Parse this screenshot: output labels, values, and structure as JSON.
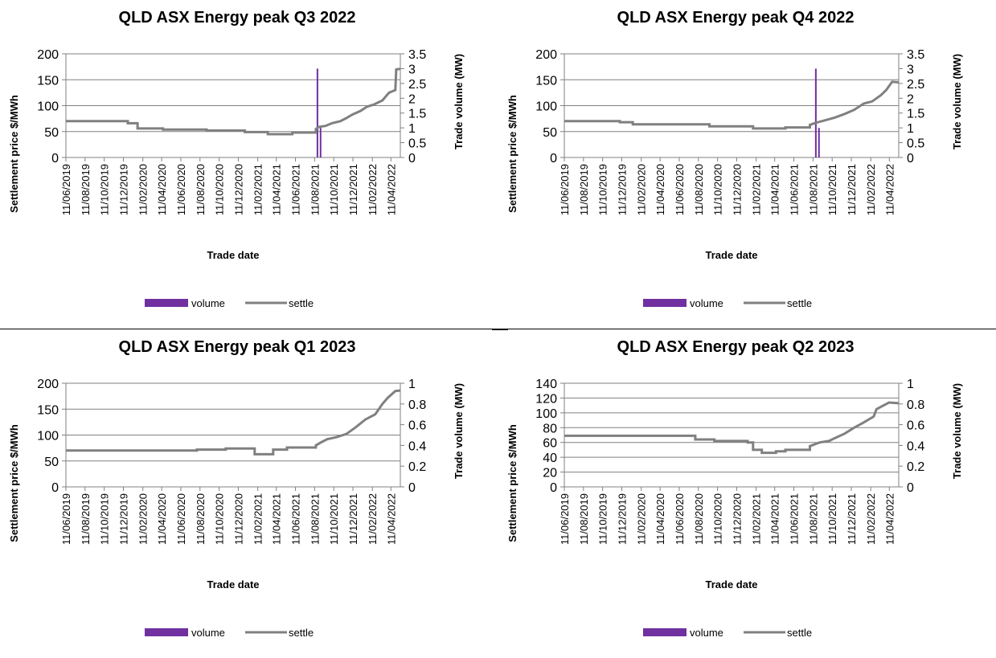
{
  "chart_data": [
    {
      "type": "line",
      "title": "QLD ASX Energy peak Q3 2022",
      "xlabel": "Trade date",
      "ylabel": "Settlement price $/MWh",
      "y2label": "Trade volume (MW)",
      "ylim": [
        0,
        200
      ],
      "y2lim": [
        0,
        3.5
      ],
      "yticks": [
        0,
        50,
        100,
        150,
        200
      ],
      "y2ticks": [
        0,
        0.5,
        1,
        1.5,
        2,
        2.5,
        3,
        3.5
      ],
      "x_range": [
        "11/06/2019",
        "11/05/2022"
      ],
      "xticks": [
        "11/06/2019",
        "11/08/2019",
        "11/10/2019",
        "11/12/2019",
        "11/02/2020",
        "11/04/2020",
        "11/06/2020",
        "11/08/2020",
        "11/10/2020",
        "11/12/2020",
        "11/02/2021",
        "11/04/2021",
        "11/06/2021",
        "11/08/2021",
        "11/10/2021",
        "11/12/2021",
        "11/02/2022",
        "11/04/2022"
      ],
      "grid": true,
      "legend": "bottom-center",
      "series": [
        {
          "name": "volume",
          "kind": "bar",
          "axis": "right",
          "color": "#7030a0",
          "points": [
            [
              "2021-08-20",
              3.0
            ],
            [
              "2021-08-30",
              1.0
            ]
          ]
        },
        {
          "name": "settle",
          "kind": "line",
          "axis": "left",
          "color": "#808080",
          "points": [
            [
              "2019-06-11",
              70
            ],
            [
              "2019-12-25",
              70
            ],
            [
              "2019-12-25",
              66
            ],
            [
              "2020-01-25",
              66
            ],
            [
              "2020-01-25",
              56
            ],
            [
              "2020-04-15",
              56
            ],
            [
              "2020-04-15",
              54
            ],
            [
              "2020-09-01",
              54
            ],
            [
              "2020-09-01",
              52
            ],
            [
              "2021-01-01",
              52
            ],
            [
              "2021-01-01",
              49
            ],
            [
              "2021-03-15",
              49
            ],
            [
              "2021-03-15",
              45
            ],
            [
              "2021-06-01",
              45
            ],
            [
              "2021-06-01",
              48
            ],
            [
              "2021-08-15",
              48
            ],
            [
              "2021-08-15",
              55
            ],
            [
              "2021-08-25",
              59
            ],
            [
              "2021-09-15",
              61
            ],
            [
              "2021-10-05",
              66
            ],
            [
              "2021-11-01",
              70
            ],
            [
              "2021-11-20",
              76
            ],
            [
              "2021-12-10",
              83
            ],
            [
              "2022-01-05",
              90
            ],
            [
              "2022-01-25",
              98
            ],
            [
              "2022-02-15",
              102
            ],
            [
              "2022-03-15",
              110
            ],
            [
              "2022-04-05",
              125
            ],
            [
              "2022-04-25",
              130
            ],
            [
              "2022-04-28",
              170
            ],
            [
              "2022-05-11",
              171
            ]
          ]
        }
      ]
    },
    {
      "type": "line",
      "title": "QLD ASX Energy peak Q4 2022",
      "xlabel": "Trade date",
      "ylabel": "Settlement price $/MWh",
      "y2label": "Trade volume (MW)",
      "ylim": [
        0,
        200
      ],
      "y2lim": [
        0,
        3.5
      ],
      "yticks": [
        0,
        50,
        100,
        150,
        200
      ],
      "y2ticks": [
        0,
        0.5,
        1,
        1.5,
        2,
        2.5,
        3,
        3.5
      ],
      "x_range": [
        "11/06/2019",
        "11/05/2022"
      ],
      "xticks": [
        "11/06/2019",
        "11/08/2019",
        "11/10/2019",
        "11/12/2019",
        "11/02/2020",
        "11/04/2020",
        "11/06/2020",
        "11/08/2020",
        "11/10/2020",
        "11/12/2020",
        "11/02/2021",
        "11/04/2021",
        "11/06/2021",
        "11/08/2021",
        "11/10/2021",
        "11/12/2021",
        "11/02/2022",
        "11/04/2022"
      ],
      "grid": true,
      "legend": "bottom-center",
      "series": [
        {
          "name": "volume",
          "kind": "bar",
          "axis": "right",
          "color": "#7030a0",
          "points": [
            [
              "2021-08-20",
              3.0
            ],
            [
              "2021-08-30",
              1.0
            ]
          ]
        },
        {
          "name": "settle",
          "kind": "line",
          "axis": "left",
          "color": "#808080",
          "points": [
            [
              "2019-06-11",
              70
            ],
            [
              "2019-12-05",
              70
            ],
            [
              "2019-12-05",
              68
            ],
            [
              "2020-01-15",
              68
            ],
            [
              "2020-01-15",
              64
            ],
            [
              "2020-09-15",
              64
            ],
            [
              "2020-09-15",
              60
            ],
            [
              "2021-02-01",
              60
            ],
            [
              "2021-02-01",
              56
            ],
            [
              "2021-05-15",
              56
            ],
            [
              "2021-05-15",
              58
            ],
            [
              "2021-08-01",
              58
            ],
            [
              "2021-08-01",
              63
            ],
            [
              "2021-08-20",
              67
            ],
            [
              "2021-09-20",
              72
            ],
            [
              "2021-10-20",
              77
            ],
            [
              "2021-11-20",
              84
            ],
            [
              "2021-12-20",
              92
            ],
            [
              "2022-01-20",
              104
            ],
            [
              "2022-02-15",
              108
            ],
            [
              "2022-03-15",
              120
            ],
            [
              "2022-04-01",
              130
            ],
            [
              "2022-04-20",
              146
            ],
            [
              "2022-05-11",
              145
            ]
          ]
        }
      ]
    },
    {
      "type": "line",
      "title": "QLD ASX Energy peak Q1 2023",
      "xlabel": "Trade date",
      "ylabel": "Settlement price $/MWh",
      "y2label": "Trade volume (MW)",
      "ylim": [
        0,
        200
      ],
      "y2lim": [
        0,
        1
      ],
      "yticks": [
        0,
        50,
        100,
        150,
        200
      ],
      "y2ticks": [
        0,
        0.2,
        0.4,
        0.6,
        0.8,
        1
      ],
      "x_range": [
        "11/06/2019",
        "11/05/2022"
      ],
      "xticks": [
        "11/06/2019",
        "11/08/2019",
        "11/10/2019",
        "11/12/2019",
        "11/02/2020",
        "11/04/2020",
        "11/06/2020",
        "11/08/2020",
        "11/10/2020",
        "11/12/2020",
        "11/02/2021",
        "11/04/2021",
        "11/06/2021",
        "11/08/2021",
        "11/10/2021",
        "11/12/2021",
        "11/02/2022",
        "11/04/2022"
      ],
      "grid": true,
      "legend": "bottom-center",
      "series": [
        {
          "name": "volume",
          "kind": "bar",
          "axis": "right",
          "color": "#7030a0",
          "points": []
        },
        {
          "name": "settle",
          "kind": "line",
          "axis": "left",
          "color": "#808080",
          "points": [
            [
              "2019-06-11",
              70
            ],
            [
              "2020-08-01",
              70
            ],
            [
              "2020-08-01",
              72
            ],
            [
              "2020-11-01",
              72
            ],
            [
              "2020-11-01",
              74
            ],
            [
              "2021-02-01",
              74
            ],
            [
              "2021-02-01",
              63
            ],
            [
              "2021-04-01",
              63
            ],
            [
              "2021-04-01",
              72
            ],
            [
              "2021-05-15",
              72
            ],
            [
              "2021-05-15",
              76
            ],
            [
              "2021-08-15",
              76
            ],
            [
              "2021-08-15",
              80
            ],
            [
              "2021-09-01",
              86
            ],
            [
              "2021-09-20",
              92
            ],
            [
              "2021-10-20",
              96
            ],
            [
              "2021-11-20",
              102
            ],
            [
              "2021-12-20",
              115
            ],
            [
              "2022-01-20",
              130
            ],
            [
              "2022-02-20",
              140
            ],
            [
              "2022-03-15",
              160
            ],
            [
              "2022-04-01",
              172
            ],
            [
              "2022-04-25",
              185
            ],
            [
              "2022-05-11",
              186
            ]
          ]
        }
      ]
    },
    {
      "type": "line",
      "title": "QLD ASX Energy peak Q2 2023",
      "xlabel": "Trade date",
      "ylabel": "Settlement price $/MWh",
      "y2label": "Trade volume (MW)",
      "ylim": [
        0,
        140
      ],
      "y2lim": [
        0,
        1
      ],
      "yticks": [
        0,
        20,
        40,
        60,
        80,
        100,
        120,
        140
      ],
      "y2ticks": [
        0,
        0.2,
        0.4,
        0.6,
        0.8,
        1
      ],
      "x_range": [
        "11/06/2019",
        "11/05/2022"
      ],
      "xticks": [
        "11/06/2019",
        "11/08/2019",
        "11/10/2019",
        "11/12/2019",
        "11/02/2020",
        "11/04/2020",
        "11/06/2020",
        "11/08/2020",
        "11/10/2020",
        "11/12/2020",
        "11/02/2021",
        "11/04/2021",
        "11/06/2021",
        "11/08/2021",
        "11/10/2021",
        "11/12/2021",
        "11/02/2022",
        "11/04/2022"
      ],
      "grid": true,
      "legend": "bottom-center",
      "series": [
        {
          "name": "volume",
          "kind": "bar",
          "axis": "right",
          "color": "#7030a0",
          "points": []
        },
        {
          "name": "settle",
          "kind": "line",
          "axis": "left",
          "color": "#808080",
          "points": [
            [
              "2019-06-11",
              69
            ],
            [
              "2020-08-01",
              69
            ],
            [
              "2020-08-01",
              64
            ],
            [
              "2020-10-01",
              64
            ],
            [
              "2020-10-01",
              62
            ],
            [
              "2021-01-15",
              62
            ],
            [
              "2021-01-15",
              60
            ],
            [
              "2021-02-01",
              60
            ],
            [
              "2021-02-01",
              50
            ],
            [
              "2021-03-01",
              50
            ],
            [
              "2021-03-01",
              46
            ],
            [
              "2021-04-15",
              46
            ],
            [
              "2021-04-15",
              48
            ],
            [
              "2021-05-15",
              48
            ],
            [
              "2021-05-15",
              50
            ],
            [
              "2021-08-01",
              50
            ],
            [
              "2021-08-01",
              55
            ],
            [
              "2021-09-01",
              60
            ],
            [
              "2021-10-01",
              62
            ],
            [
              "2021-10-20",
              66
            ],
            [
              "2021-11-20",
              72
            ],
            [
              "2021-12-20",
              80
            ],
            [
              "2022-01-15",
              86
            ],
            [
              "2022-02-20",
              95
            ],
            [
              "2022-03-01",
              105
            ],
            [
              "2022-04-10",
              114
            ],
            [
              "2022-05-11",
              113
            ]
          ]
        }
      ]
    }
  ]
}
